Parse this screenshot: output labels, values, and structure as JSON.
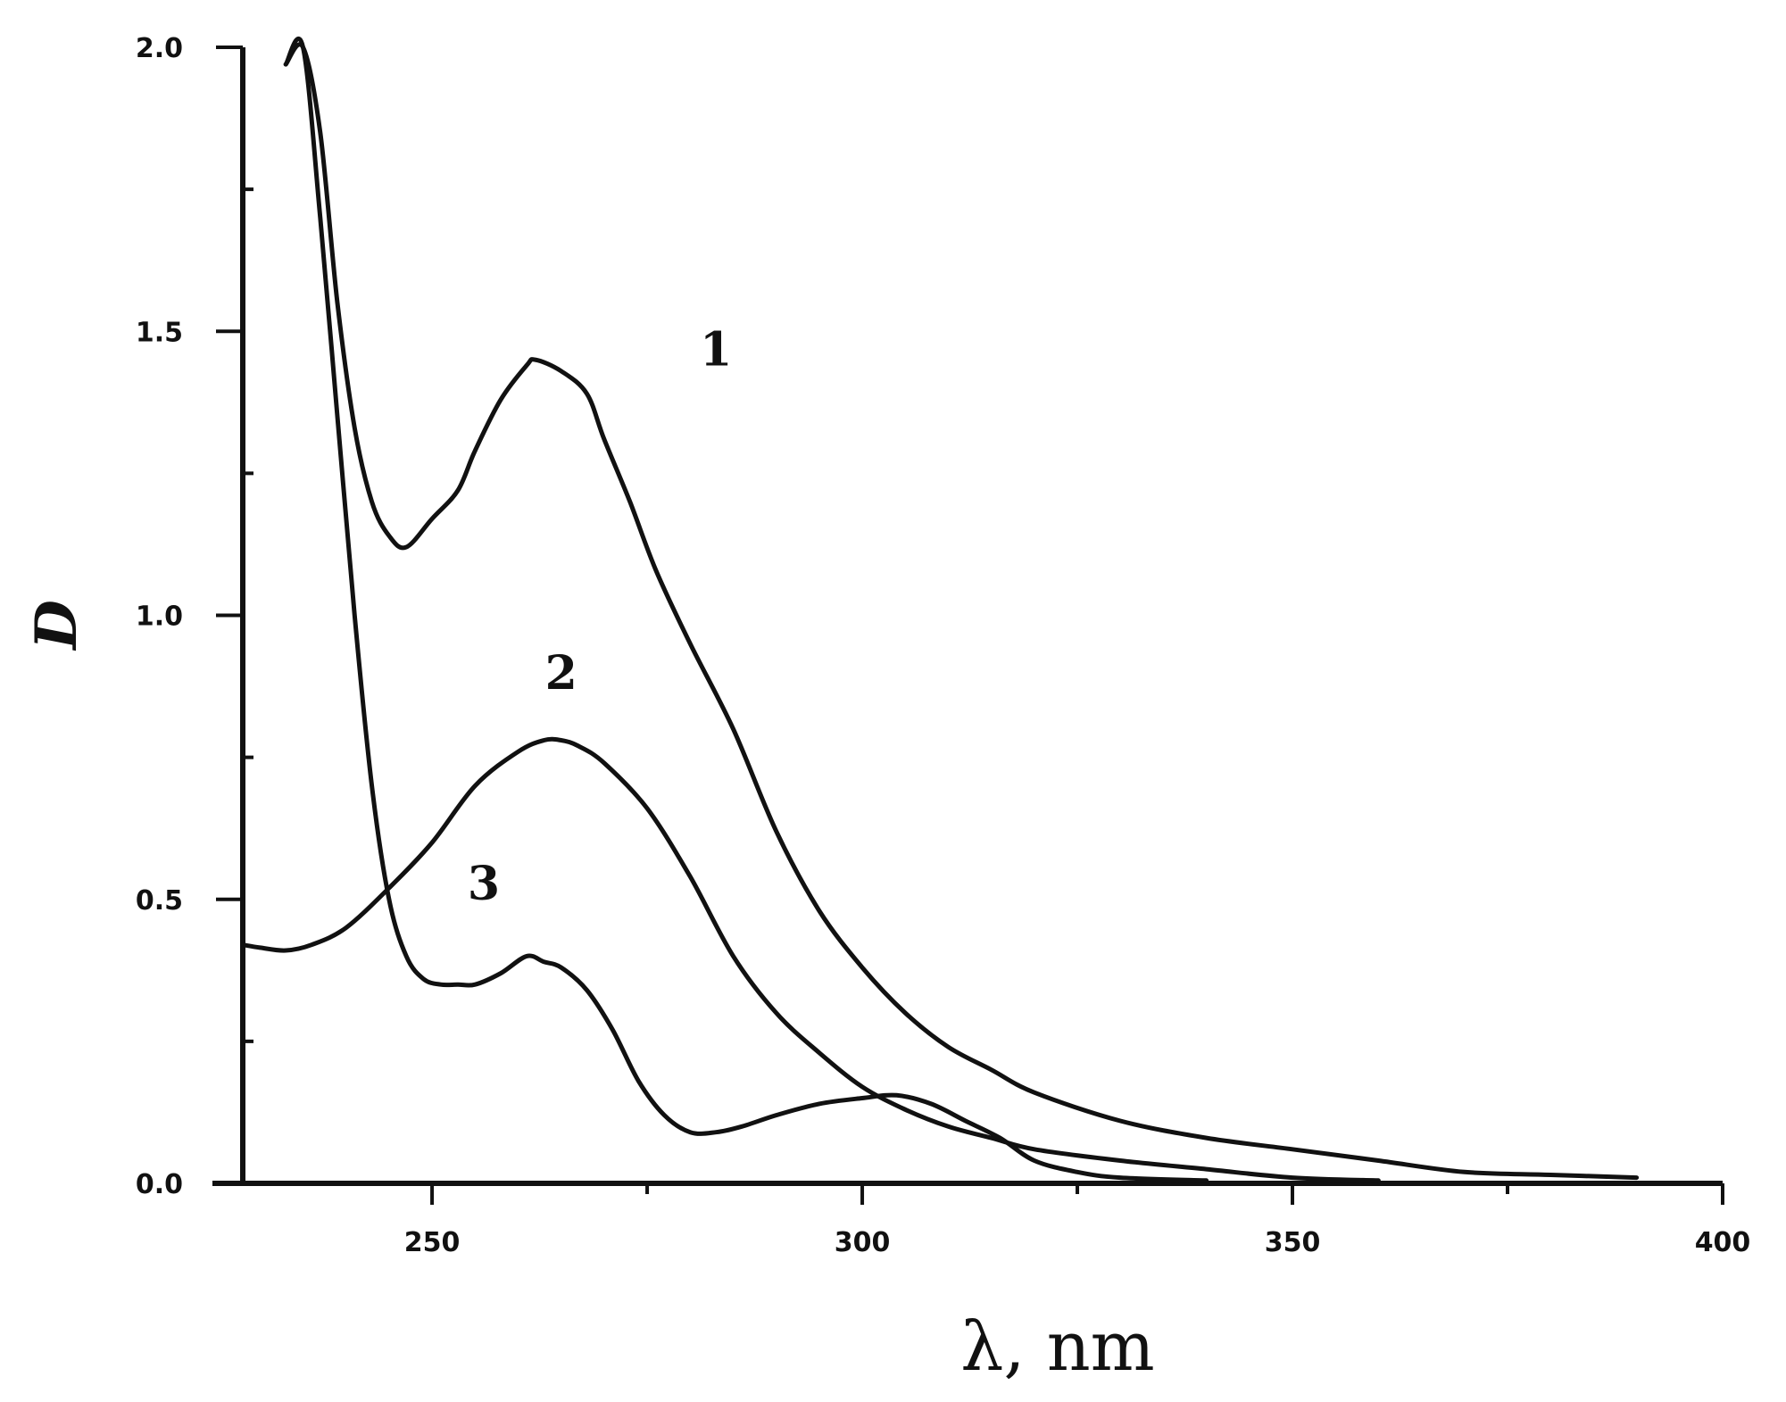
{
  "chart_data": {
    "type": "line",
    "xlabel": "λ, nm",
    "ylabel": "D",
    "xlim": [
      228,
      400
    ],
    "ylim": [
      0,
      2.0
    ],
    "xticks": [
      250,
      300,
      350,
      400
    ],
    "xtick_labels": [
      "250",
      "300",
      "350",
      "400"
    ],
    "yticks": [
      0,
      0.5,
      1.0,
      1.5,
      2.0
    ],
    "ytick_labels": [
      "0.0",
      "0.5",
      "1.0",
      "1.5",
      "2.0"
    ],
    "grid": false,
    "legend": "none",
    "series": [
      {
        "name": "1",
        "x": [
          233,
          235,
          237,
          239,
          241,
          243,
          245,
          247,
          250,
          253,
          255,
          258,
          261,
          262,
          265,
          268,
          270,
          273,
          276,
          280,
          285,
          290,
          295,
          300,
          305,
          310,
          315,
          320,
          330,
          340,
          350,
          360,
          370,
          380,
          390
        ],
        "y": [
          1.97,
          2.0,
          1.85,
          1.55,
          1.33,
          1.2,
          1.14,
          1.12,
          1.17,
          1.22,
          1.29,
          1.38,
          1.44,
          1.45,
          1.43,
          1.39,
          1.31,
          1.2,
          1.08,
          0.95,
          0.8,
          0.62,
          0.48,
          0.38,
          0.3,
          0.24,
          0.2,
          0.16,
          0.11,
          0.08,
          0.06,
          0.04,
          0.02,
          0.015,
          0.01
        ]
      },
      {
        "name": "2",
        "x": [
          228,
          230,
          233,
          236,
          240,
          245,
          250,
          255,
          260,
          263,
          265,
          267,
          270,
          275,
          280,
          285,
          290,
          295,
          300,
          305,
          310,
          315,
          320,
          330,
          340,
          350,
          360
        ],
        "y": [
          0.42,
          0.415,
          0.41,
          0.42,
          0.45,
          0.52,
          0.6,
          0.7,
          0.76,
          0.78,
          0.78,
          0.77,
          0.74,
          0.66,
          0.54,
          0.4,
          0.3,
          0.23,
          0.17,
          0.13,
          0.1,
          0.08,
          0.06,
          0.04,
          0.025,
          0.01,
          0.005
        ]
      },
      {
        "name": "3",
        "x": [
          233,
          235,
          237,
          239,
          241,
          243,
          245,
          247,
          249,
          251,
          253,
          255,
          258,
          261,
          263,
          265,
          268,
          271,
          274,
          277,
          280,
          283,
          286,
          290,
          295,
          300,
          304,
          308,
          312,
          316,
          320,
          325,
          330,
          340
        ],
        "y": [
          1.97,
          2.0,
          1.7,
          1.35,
          1.0,
          0.7,
          0.5,
          0.4,
          0.36,
          0.35,
          0.35,
          0.35,
          0.37,
          0.4,
          0.39,
          0.38,
          0.34,
          0.27,
          0.18,
          0.12,
          0.09,
          0.09,
          0.1,
          0.12,
          0.14,
          0.15,
          0.155,
          0.14,
          0.11,
          0.08,
          0.04,
          0.02,
          0.01,
          0.005
        ]
      }
    ]
  }
}
